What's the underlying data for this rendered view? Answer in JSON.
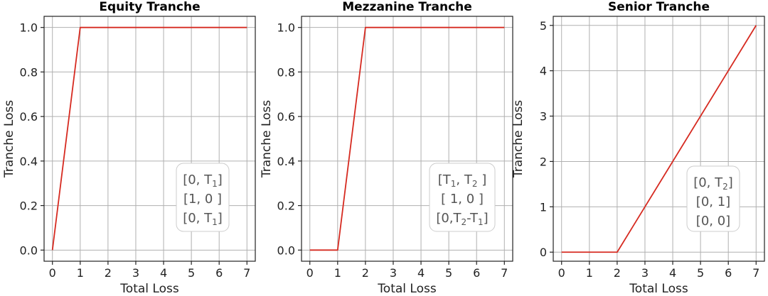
{
  "chart_data": [
    {
      "type": "line",
      "title": "Equity Tranche",
      "xlabel": "Total Loss",
      "ylabel": "Tranche Loss",
      "xlim": [
        -0.3,
        7.3
      ],
      "ylim": [
        -0.05,
        1.05
      ],
      "xticks": [
        "0",
        "1",
        "2",
        "3",
        "4",
        "5",
        "6",
        "7"
      ],
      "yticks": [
        "0.0",
        "0.2",
        "0.4",
        "0.6",
        "0.8",
        "1.0"
      ],
      "grid": true,
      "series": [
        {
          "color": "#d62a20",
          "x": [
            0,
            1,
            7
          ],
          "y": [
            0,
            1,
            1
          ]
        }
      ],
      "annotation": [
        "[0, T1]",
        "[1, 0 ]",
        "[0, T1]"
      ]
    },
    {
      "type": "line",
      "title": "Mezzanine Tranche",
      "xlabel": "Total Loss",
      "ylabel": "Tranche Loss",
      "xlim": [
        -0.3,
        7.3
      ],
      "ylim": [
        -0.05,
        1.05
      ],
      "xticks": [
        "0",
        "1",
        "2",
        "3",
        "4",
        "5",
        "6",
        "7"
      ],
      "yticks": [
        "0.0",
        "0.2",
        "0.4",
        "0.6",
        "0.8",
        "1.0"
      ],
      "grid": true,
      "series": [
        {
          "color": "#d62a20",
          "x": [
            0,
            1,
            2,
            7
          ],
          "y": [
            0,
            0,
            1,
            1
          ]
        }
      ],
      "annotation": [
        "[T1,  T2 ]",
        "[ 1,    0 ]",
        "[0,T2-T1]"
      ]
    },
    {
      "type": "line",
      "title": "Senior Tranche",
      "xlabel": "Total Loss",
      "ylabel": "Tranche Loss",
      "xlim": [
        -0.3,
        7.3
      ],
      "ylim": [
        -0.2,
        5.2
      ],
      "xticks": [
        "0",
        "1",
        "2",
        "3",
        "4",
        "5",
        "6",
        "7"
      ],
      "yticks": [
        "0",
        "1",
        "2",
        "3",
        "4",
        "5"
      ],
      "grid": true,
      "series": [
        {
          "color": "#d62a20",
          "x": [
            0,
            2,
            7
          ],
          "y": [
            0,
            0,
            5
          ]
        }
      ],
      "annotation": [
        "[0, T2]",
        "[0,  1]",
        "[0,  0]"
      ]
    }
  ]
}
